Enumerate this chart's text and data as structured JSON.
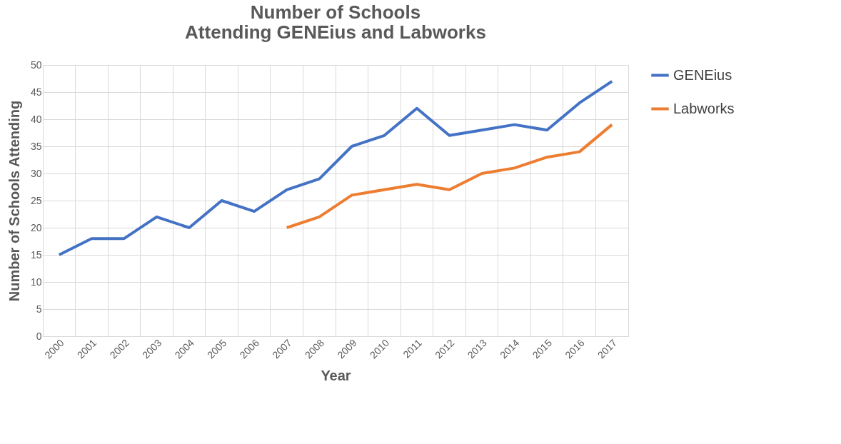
{
  "chart_data": {
    "type": "line",
    "title": "Number of Schools Attending GENEius and Labworks",
    "xlabel": "Year",
    "ylabel": "Number of Schools Attending",
    "categories": [
      "2000",
      "2001",
      "2002",
      "2003",
      "2004",
      "2005",
      "2006",
      "2007",
      "2008",
      "2009",
      "2010",
      "2011",
      "2012",
      "2013",
      "2014",
      "2015",
      "2016",
      "2017"
    ],
    "series": [
      {
        "name": "GENEius",
        "color": "#4472c4",
        "values": [
          15,
          18,
          18,
          22,
          20,
          25,
          23,
          27,
          29,
          35,
          37,
          42,
          37,
          38,
          39,
          38,
          43,
          47
        ]
      },
      {
        "name": "Labworks",
        "color": "#ed7d31",
        "values": [
          null,
          null,
          null,
          null,
          null,
          null,
          null,
          20,
          22,
          26,
          27,
          28,
          27,
          30,
          31,
          33,
          34,
          39
        ]
      }
    ],
    "ylim": [
      0,
      50
    ],
    "yticks": [
      0,
      5,
      10,
      15,
      20,
      25,
      30,
      35,
      40,
      45,
      50
    ],
    "grid": true,
    "legend": "right",
    "marker": "none",
    "line_style": "solid"
  }
}
